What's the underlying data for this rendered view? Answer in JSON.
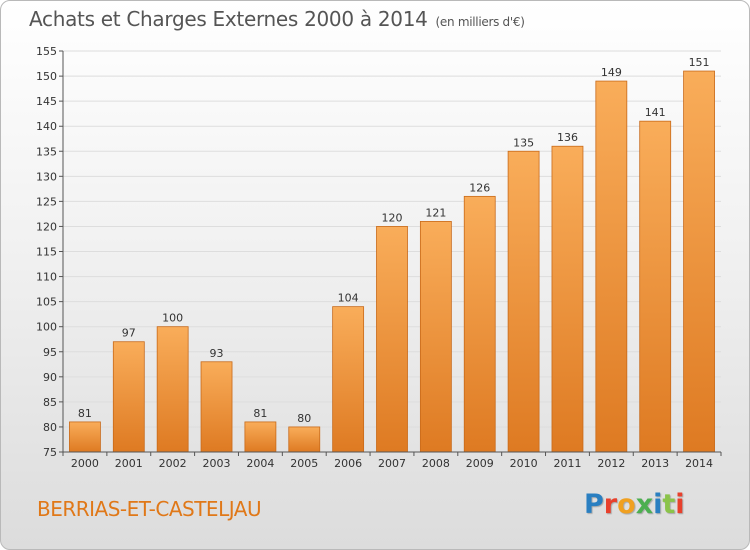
{
  "header": {
    "title": "Achats et Charges Externes 2000 à 2014",
    "unit": "(en milliers d'€)"
  },
  "footer": {
    "place": "BERRIAS-ET-CASTELJAU",
    "logo_text": "Proxiti",
    "logo_colors": [
      "#2a7fc1",
      "#e8402c",
      "#f0a020",
      "#4caf50",
      "#2a7fc1",
      "#8bc34a",
      "#e8402c"
    ]
  },
  "colors": {
    "bar_light": "#f9ad5a",
    "bar_dark": "#de7a22",
    "bar_edge": "#c86a1a",
    "grid": "#dddddd",
    "axis_text": "#333333",
    "title_text": "#555555",
    "place_text": "#e07818"
  },
  "chart_data": {
    "type": "bar",
    "categories": [
      "2000",
      "2001",
      "2002",
      "2003",
      "2004",
      "2005",
      "2006",
      "2007",
      "2008",
      "2009",
      "2010",
      "2011",
      "2012",
      "2013",
      "2014"
    ],
    "values": [
      81,
      97,
      100,
      93,
      81,
      80,
      104,
      120,
      121,
      126,
      135,
      136,
      149,
      141,
      151
    ],
    "ylim": [
      75,
      155
    ],
    "yticks": [
      75,
      80,
      85,
      90,
      95,
      100,
      105,
      110,
      115,
      120,
      125,
      130,
      135,
      140,
      145,
      150,
      155
    ],
    "grid": true,
    "data_labels": true
  }
}
